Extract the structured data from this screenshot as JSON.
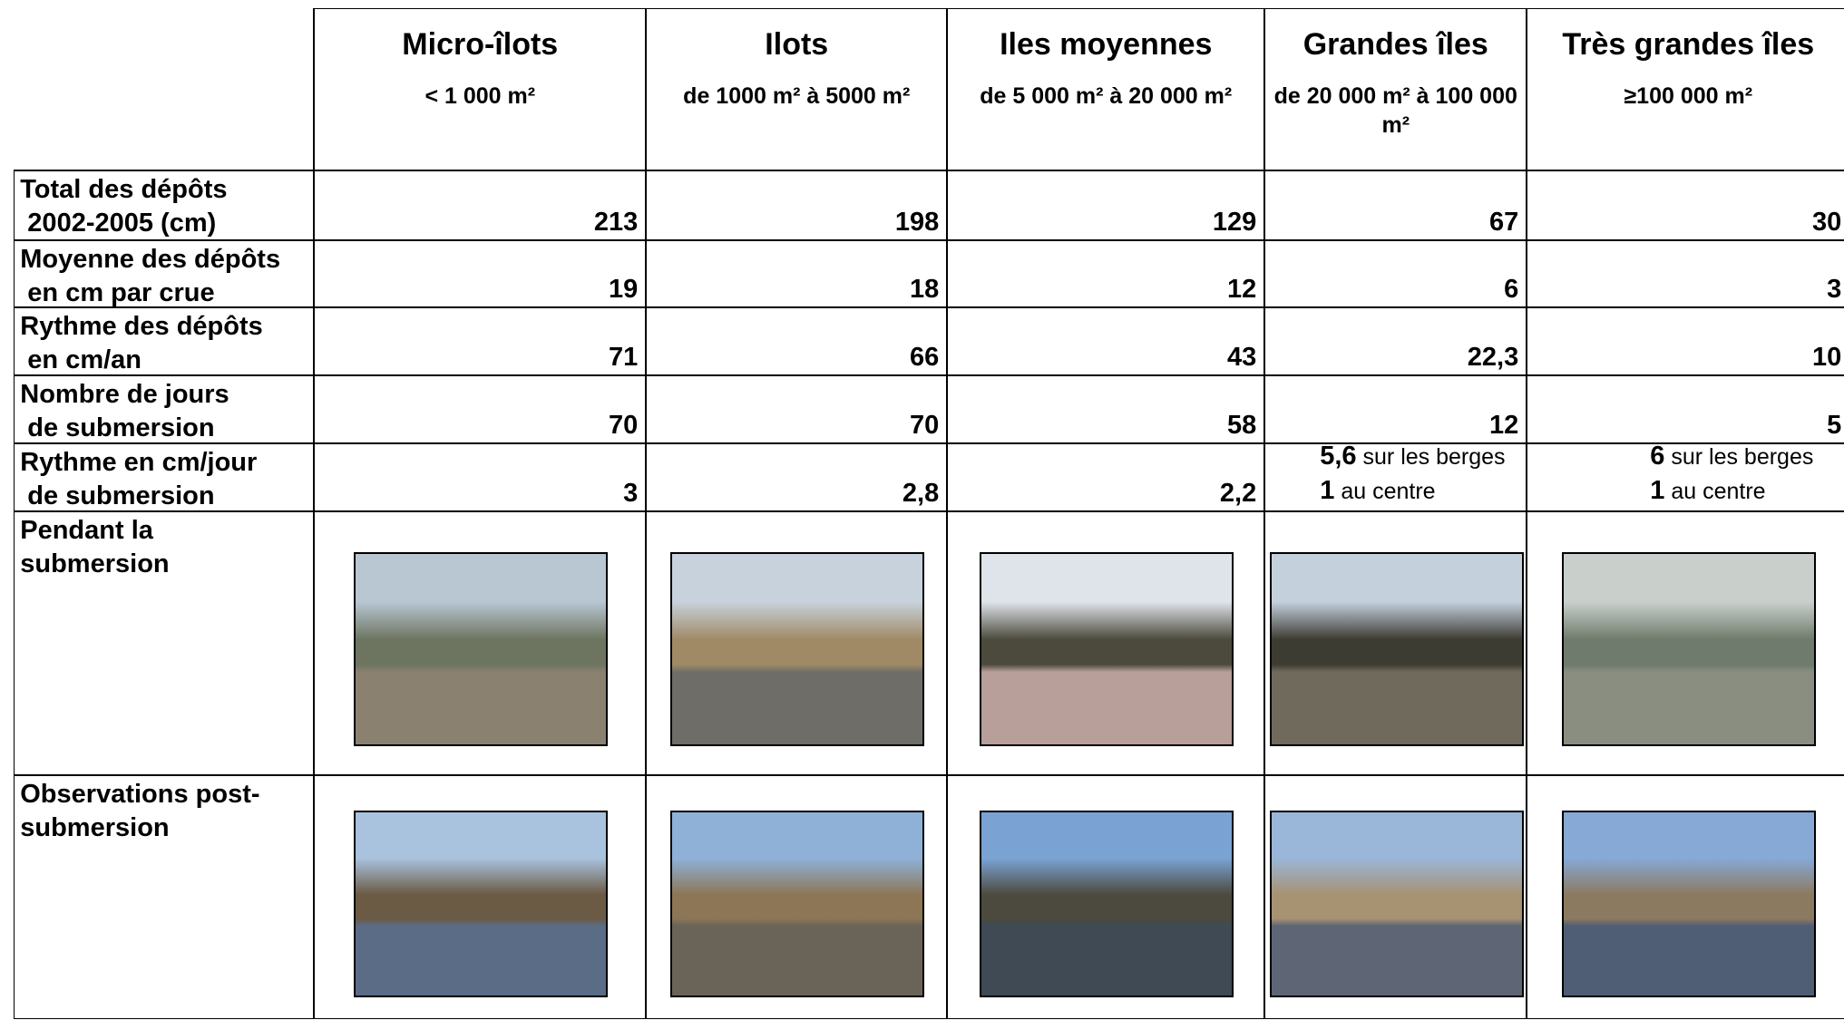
{
  "header": {
    "columns": [
      {
        "title": "Micro-îlots",
        "size": "< 1 000 m²"
      },
      {
        "title": "Ilots",
        "size": "de 1000 m² à 5000 m²"
      },
      {
        "title": "Iles moyennes",
        "size": "de 5 000 m² à 20 000 m²"
      },
      {
        "title": "Grandes îles",
        "size": "de 20 000 m² à 100 000 m²"
      },
      {
        "title": "Très grandes îles",
        "size": "≥100 000 m²"
      }
    ]
  },
  "rows": [
    {
      "label_lines": [
        "Total des dépôts",
        " 2002-2005 (cm)"
      ],
      "values": [
        "213",
        "198",
        "129",
        "67",
        "30"
      ]
    },
    {
      "label_lines": [
        "Moyenne des dépôts",
        " en cm par crue"
      ],
      "values": [
        "19",
        "18",
        "12",
        "6",
        "3"
      ]
    },
    {
      "label_lines": [
        "Rythme des dépôts",
        " en cm/an"
      ],
      "values": [
        "71",
        "66",
        "43",
        "22,3",
        "10"
      ]
    },
    {
      "label_lines": [
        "Nombre de jours",
        " de submersion"
      ],
      "values": [
        "70",
        "70",
        "58",
        "12",
        "5"
      ]
    },
    {
      "label_lines": [
        "Rythme en cm/jour",
        " de submersion"
      ],
      "values": [
        "3",
        "2,8",
        "2,2",
        {
          "lines": [
            {
              "value": "5,6",
              "text": " sur les berges"
            },
            {
              "value": "1",
              "text": " au centre"
            }
          ]
        },
        {
          "lines": [
            {
              "value": "6",
              "text": " sur les berges"
            },
            {
              "value": "1",
              "text": " au centre"
            }
          ]
        }
      ]
    }
  ],
  "photo_rows": [
    {
      "label_lines": [
        "Pendant la",
        "submersion"
      ]
    },
    {
      "label_lines": [
        "Observations post-",
        "submersion"
      ]
    }
  ]
}
